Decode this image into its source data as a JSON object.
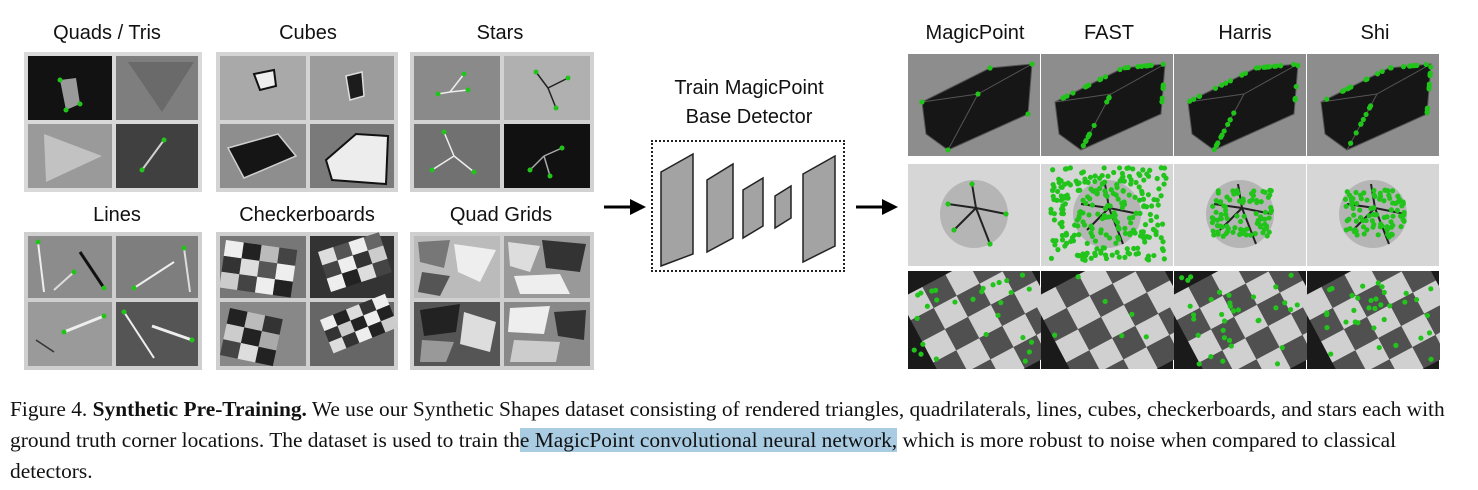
{
  "left_groups": [
    {
      "label": "Quads / Tris"
    },
    {
      "label": "Cubes"
    },
    {
      "label": "Stars"
    },
    {
      "label": "Lines"
    },
    {
      "label": "Checkerboards"
    },
    {
      "label": "Quad Grids"
    }
  ],
  "detector": {
    "title_line1": "Train MagicPoint",
    "title_line2": "Base Detector"
  },
  "right_columns": [
    "MagicPoint",
    "FAST",
    "Harris",
    "Shi"
  ],
  "caption": {
    "figure_label": "Figure 4.",
    "bold_title": "Synthetic Pre-Training.",
    "text_part1": " We use our Synthetic Shapes dataset consisting of rendered triangles, quadrilaterals, lines, cubes, checkerboards, and stars each with ground truth corner locations. The dataset is used to train th",
    "highlighted": "e MagicPoint convolutional neural network,",
    "text_part2": " which is more robust to noise when compared to classical detectors."
  },
  "colors": {
    "keypoint": "#22c41c",
    "highlight": "#a9cce3"
  }
}
